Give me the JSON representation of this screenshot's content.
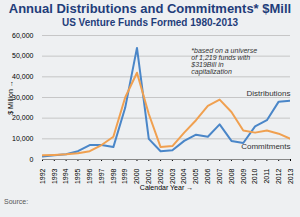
{
  "chart_data": {
    "type": "line",
    "title": "Annual Distributions and Commitments* $Mill",
    "subtitle": "US Venture Funds Formed 1980-2013",
    "x_label": "Calendar Year",
    "y_label": "$ Million",
    "annotation": "*based on a universe of 1,219 funds with $319Bill in capitalization",
    "source": "Source:",
    "x": [
      1992,
      1993,
      1994,
      1995,
      1996,
      1997,
      1998,
      1999,
      2000,
      2001,
      2002,
      2003,
      2004,
      2005,
      2006,
      2007,
      2008,
      2009,
      2010,
      2011,
      2012,
      2013
    ],
    "series": [
      {
        "name": "Distributions",
        "color": "#4a86c8",
        "values": [
          1500,
          2000,
          2500,
          4000,
          7000,
          7000,
          6000,
          25000,
          54000,
          10000,
          4000,
          4500,
          9000,
          12000,
          11000,
          17000,
          9000,
          8000,
          16000,
          19000,
          28000,
          28500
        ]
      },
      {
        "name": "Commitments",
        "color": "#f0a050",
        "values": [
          2000,
          2200,
          2500,
          3000,
          4000,
          7000,
          11000,
          30000,
          42000,
          22000,
          6000,
          6500,
          13000,
          19000,
          26000,
          29000,
          23000,
          14000,
          13000,
          14000,
          12500,
          10000
        ]
      }
    ],
    "xlim": [
      1992,
      2013
    ],
    "xticks": [
      1992,
      1993,
      1994,
      1995,
      1996,
      1997,
      1998,
      1999,
      2000,
      2001,
      2002,
      2003,
      2004,
      2005,
      2006,
      2007,
      2008,
      2009,
      2010,
      2011,
      2012,
      2013
    ],
    "ylim": [
      0,
      60000
    ],
    "yticks": [
      0,
      {
        "value": 10000,
        "label": "10,000"
      },
      {
        "value": 20000,
        "label": "20,000"
      },
      {
        "value": 30000,
        "label": "30,000"
      },
      {
        "value": 40000,
        "label": "40,000"
      },
      {
        "value": 50000,
        "label": "50,000"
      },
      {
        "value": 60000,
        "label": "60,000"
      }
    ],
    "grid": true
  }
}
